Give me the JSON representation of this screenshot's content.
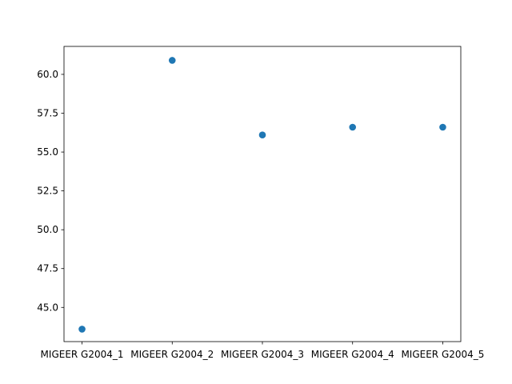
{
  "chart_data": {
    "type": "scatter",
    "title": "",
    "xlabel": "",
    "ylabel": "",
    "categories": [
      "MIGEER G2004_1",
      "MIGEER G2004_2",
      "MIGEER G2004_3",
      "MIGEER G2004_4",
      "MIGEER G2004_5"
    ],
    "series": [
      {
        "values": [
          43.6,
          60.9,
          56.1,
          56.6,
          56.6
        ]
      }
    ],
    "ylim": [
      42.8,
      61.8
    ],
    "yticks": [
      {
        "value": 45.0,
        "label": "45.0"
      },
      {
        "value": 47.5,
        "label": "47.5"
      },
      {
        "value": 50.0,
        "label": "50.0"
      },
      {
        "value": 52.5,
        "label": "52.5"
      },
      {
        "value": 55.0,
        "label": "55.0"
      },
      {
        "value": 57.5,
        "label": "57.5"
      },
      {
        "value": 60.0,
        "label": "60.0"
      }
    ],
    "grid": false,
    "legend": false,
    "marker_color": "#1f77b4"
  }
}
